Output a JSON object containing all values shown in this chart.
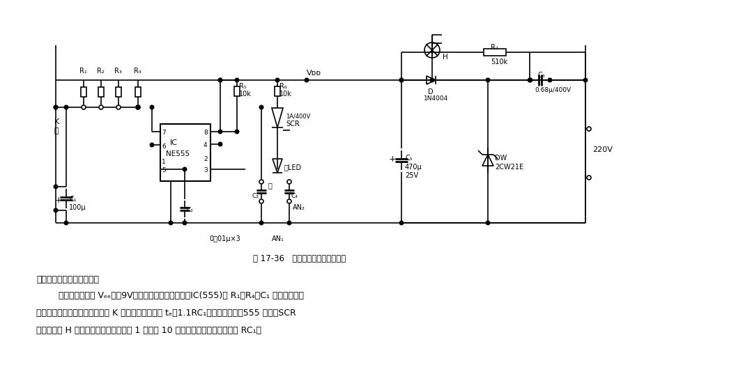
{
  "title": "图 17-36   可变延时照明自息灯电路",
  "cap1": "走廊等公共场合的照明灯。",
  "cap2": "        降压整流电路的 Vₑₑ＝＋9V，供给控制器直流电压。IC(555)和 R₁～R₄、C₁ 组成开机延时",
  "cap3": "电路，单稳时间取决于定时开关 K 的位置。延迟时间 tₑ＝1.1RC₁。延迟时间到，555 复位，SCR",
  "cap4": "截止，灯泡 H 无电自息。延迟时间可取 1 分钟或 10 分钟不等，取决于时间常数 RC₁。",
  "bg_color": "#ffffff",
  "lc": "#000000",
  "fig_w": 10.56,
  "fig_h": 5.47
}
